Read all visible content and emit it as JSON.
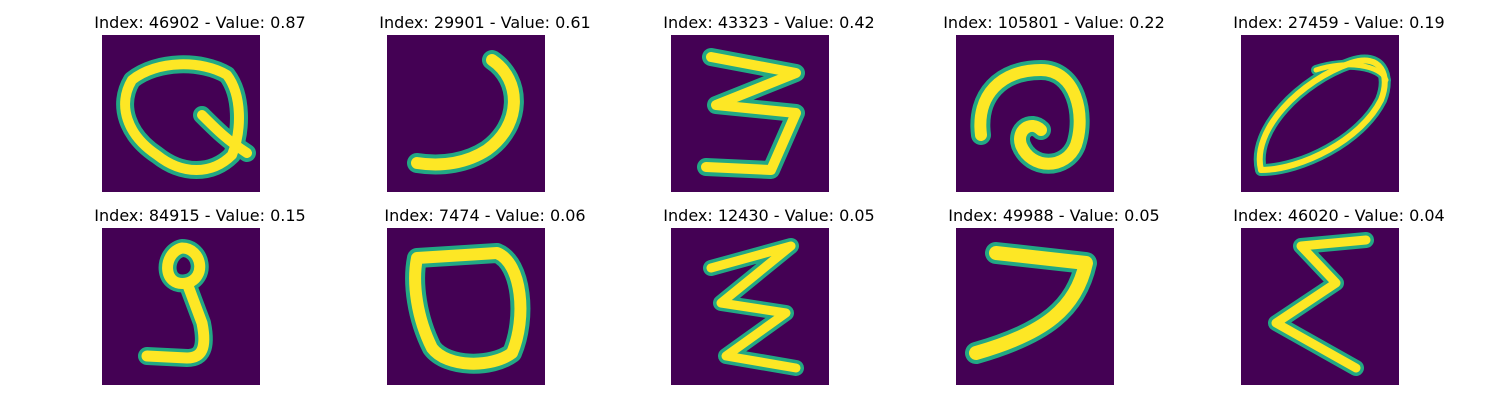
{
  "colors": {
    "background": "#440154",
    "stroke_core": "#fde725",
    "stroke_mid": "#7ad151",
    "stroke_edge": "#22a884"
  },
  "panels": [
    {
      "title": "Index: 46902 - Value: 0.87",
      "glyph": "Q-shape"
    },
    {
      "title": "Index: 29901 - Value: 0.61",
      "glyph": "J-curve"
    },
    {
      "title": "Index: 43323 - Value: 0.42",
      "glyph": "3-zigzag"
    },
    {
      "title": "Index: 105801 - Value: 0.22",
      "glyph": "swirl"
    },
    {
      "title": "Index: 27459 - Value: 0.19",
      "glyph": "ellipse-scribble"
    },
    {
      "title": "Index: 84915 - Value: 0.15",
      "glyph": "8-hook"
    },
    {
      "title": "Index: 7474 - Value: 0.06",
      "glyph": "0-oval"
    },
    {
      "title": "Index: 12430 - Value: 0.05",
      "glyph": "3-zigzag-thin"
    },
    {
      "title": "Index: 49988 - Value: 0.05",
      "glyph": "7-shape"
    },
    {
      "title": "Index: 46020 - Value: 0.04",
      "glyph": "E-zigzag"
    }
  ]
}
